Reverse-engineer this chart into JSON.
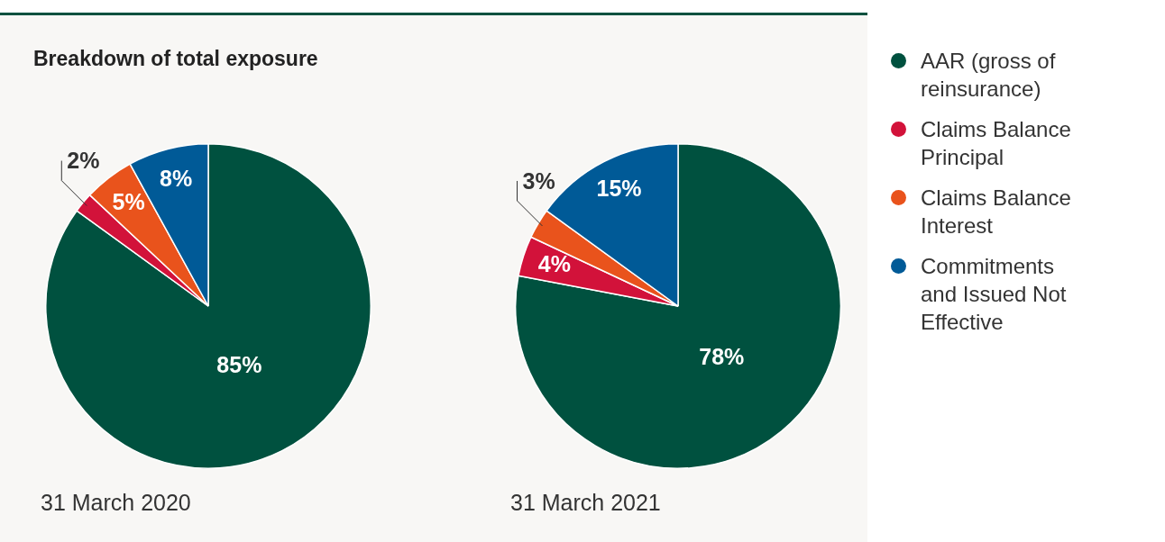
{
  "chart_data": [
    {
      "type": "pie",
      "title": "Breakdown of total exposure",
      "xlabel": "31 March 2020",
      "categories": [
        "AAR (gross of reinsurance)",
        "Claims Balance Principal",
        "Claims Balance Interest",
        "Commitments and Issued Not Effective"
      ],
      "values": [
        85,
        2,
        5,
        8
      ],
      "value_labels": [
        "85%",
        "2%",
        "5%",
        "8%"
      ],
      "colors": [
        "#00513f",
        "#d2123a",
        "#e9531c",
        "#005a97"
      ],
      "legend": "right"
    },
    {
      "type": "pie",
      "xlabel": "31 March 2021",
      "categories": [
        null,
        null,
        null,
        null
      ],
      "values": [
        78,
        4,
        3,
        15
      ],
      "value_labels": [
        "78%",
        "4%",
        "3%",
        "15%"
      ],
      "colors": [
        "#00513f",
        "#d2123a",
        "#e9531c",
        "#005a97"
      ]
    }
  ]
}
